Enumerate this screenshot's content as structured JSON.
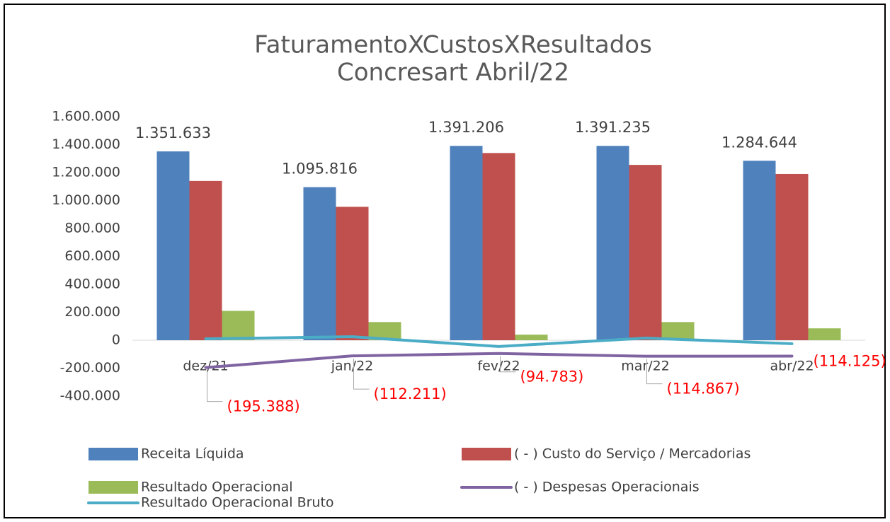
{
  "chart_data": {
    "type": "bar",
    "title": "FaturamentoXCustosXResultados",
    "subtitle": "Concresart Abril/22",
    "categories": [
      "dez/21",
      "jan/22",
      "fev/22",
      "mar/22",
      "abr/22"
    ],
    "series": [
      {
        "name": "Receita Líquida",
        "type": "bar",
        "color": "#4f81bd",
        "values": [
          1351633,
          1095816,
          1391206,
          1391235,
          1284644
        ],
        "value_labels": [
          "1.351.633",
          "1.095.816",
          "1.391.206",
          "1.391.235",
          "1.284.644"
        ]
      },
      {
        "name": "( - ) Custo do Serviço / Mercadorias",
        "type": "bar",
        "color": "#c0504d",
        "values": [
          1140000,
          955000,
          1340000,
          1255000,
          1190000
        ]
      },
      {
        "name": "Resultado Operacional",
        "type": "bar",
        "color": "#9bbb59",
        "values": [
          210000,
          130000,
          40000,
          130000,
          85000
        ]
      },
      {
        "name": "( - ) Despesas Operacionais",
        "type": "line",
        "color": "#8064a2",
        "values": [
          -195388,
          -112211,
          -94783,
          -114867,
          -114125
        ],
        "value_labels": [
          "(195.388)",
          "(112.211)",
          "(94.783)",
          "(114.867)",
          "(114.125)"
        ]
      },
      {
        "name": "Resultado Operacional Bruto",
        "type": "line",
        "color": "#4bacc6",
        "values": [
          10000,
          25000,
          -45000,
          15000,
          -25000
        ]
      }
    ],
    "ylim": [
      -400000,
      1600000
    ],
    "yticks": [
      {
        "value": -400000,
        "label": "-400.000"
      },
      {
        "value": -200000,
        "label": "-200.000"
      },
      0,
      {
        "value": 200000,
        "label": "200.000"
      },
      {
        "value": 400000,
        "label": "400.000"
      },
      {
        "value": 600000,
        "label": "600.000"
      },
      {
        "value": 800000,
        "label": "800.000"
      },
      {
        "value": 1000000,
        "label": "1.000.000"
      },
      {
        "value": 1200000,
        "label": "1.200.000"
      },
      {
        "value": 1400000,
        "label": "1.400.000"
      },
      {
        "value": 1600000,
        "label": "1.600.000"
      }
    ],
    "grid": false
  }
}
